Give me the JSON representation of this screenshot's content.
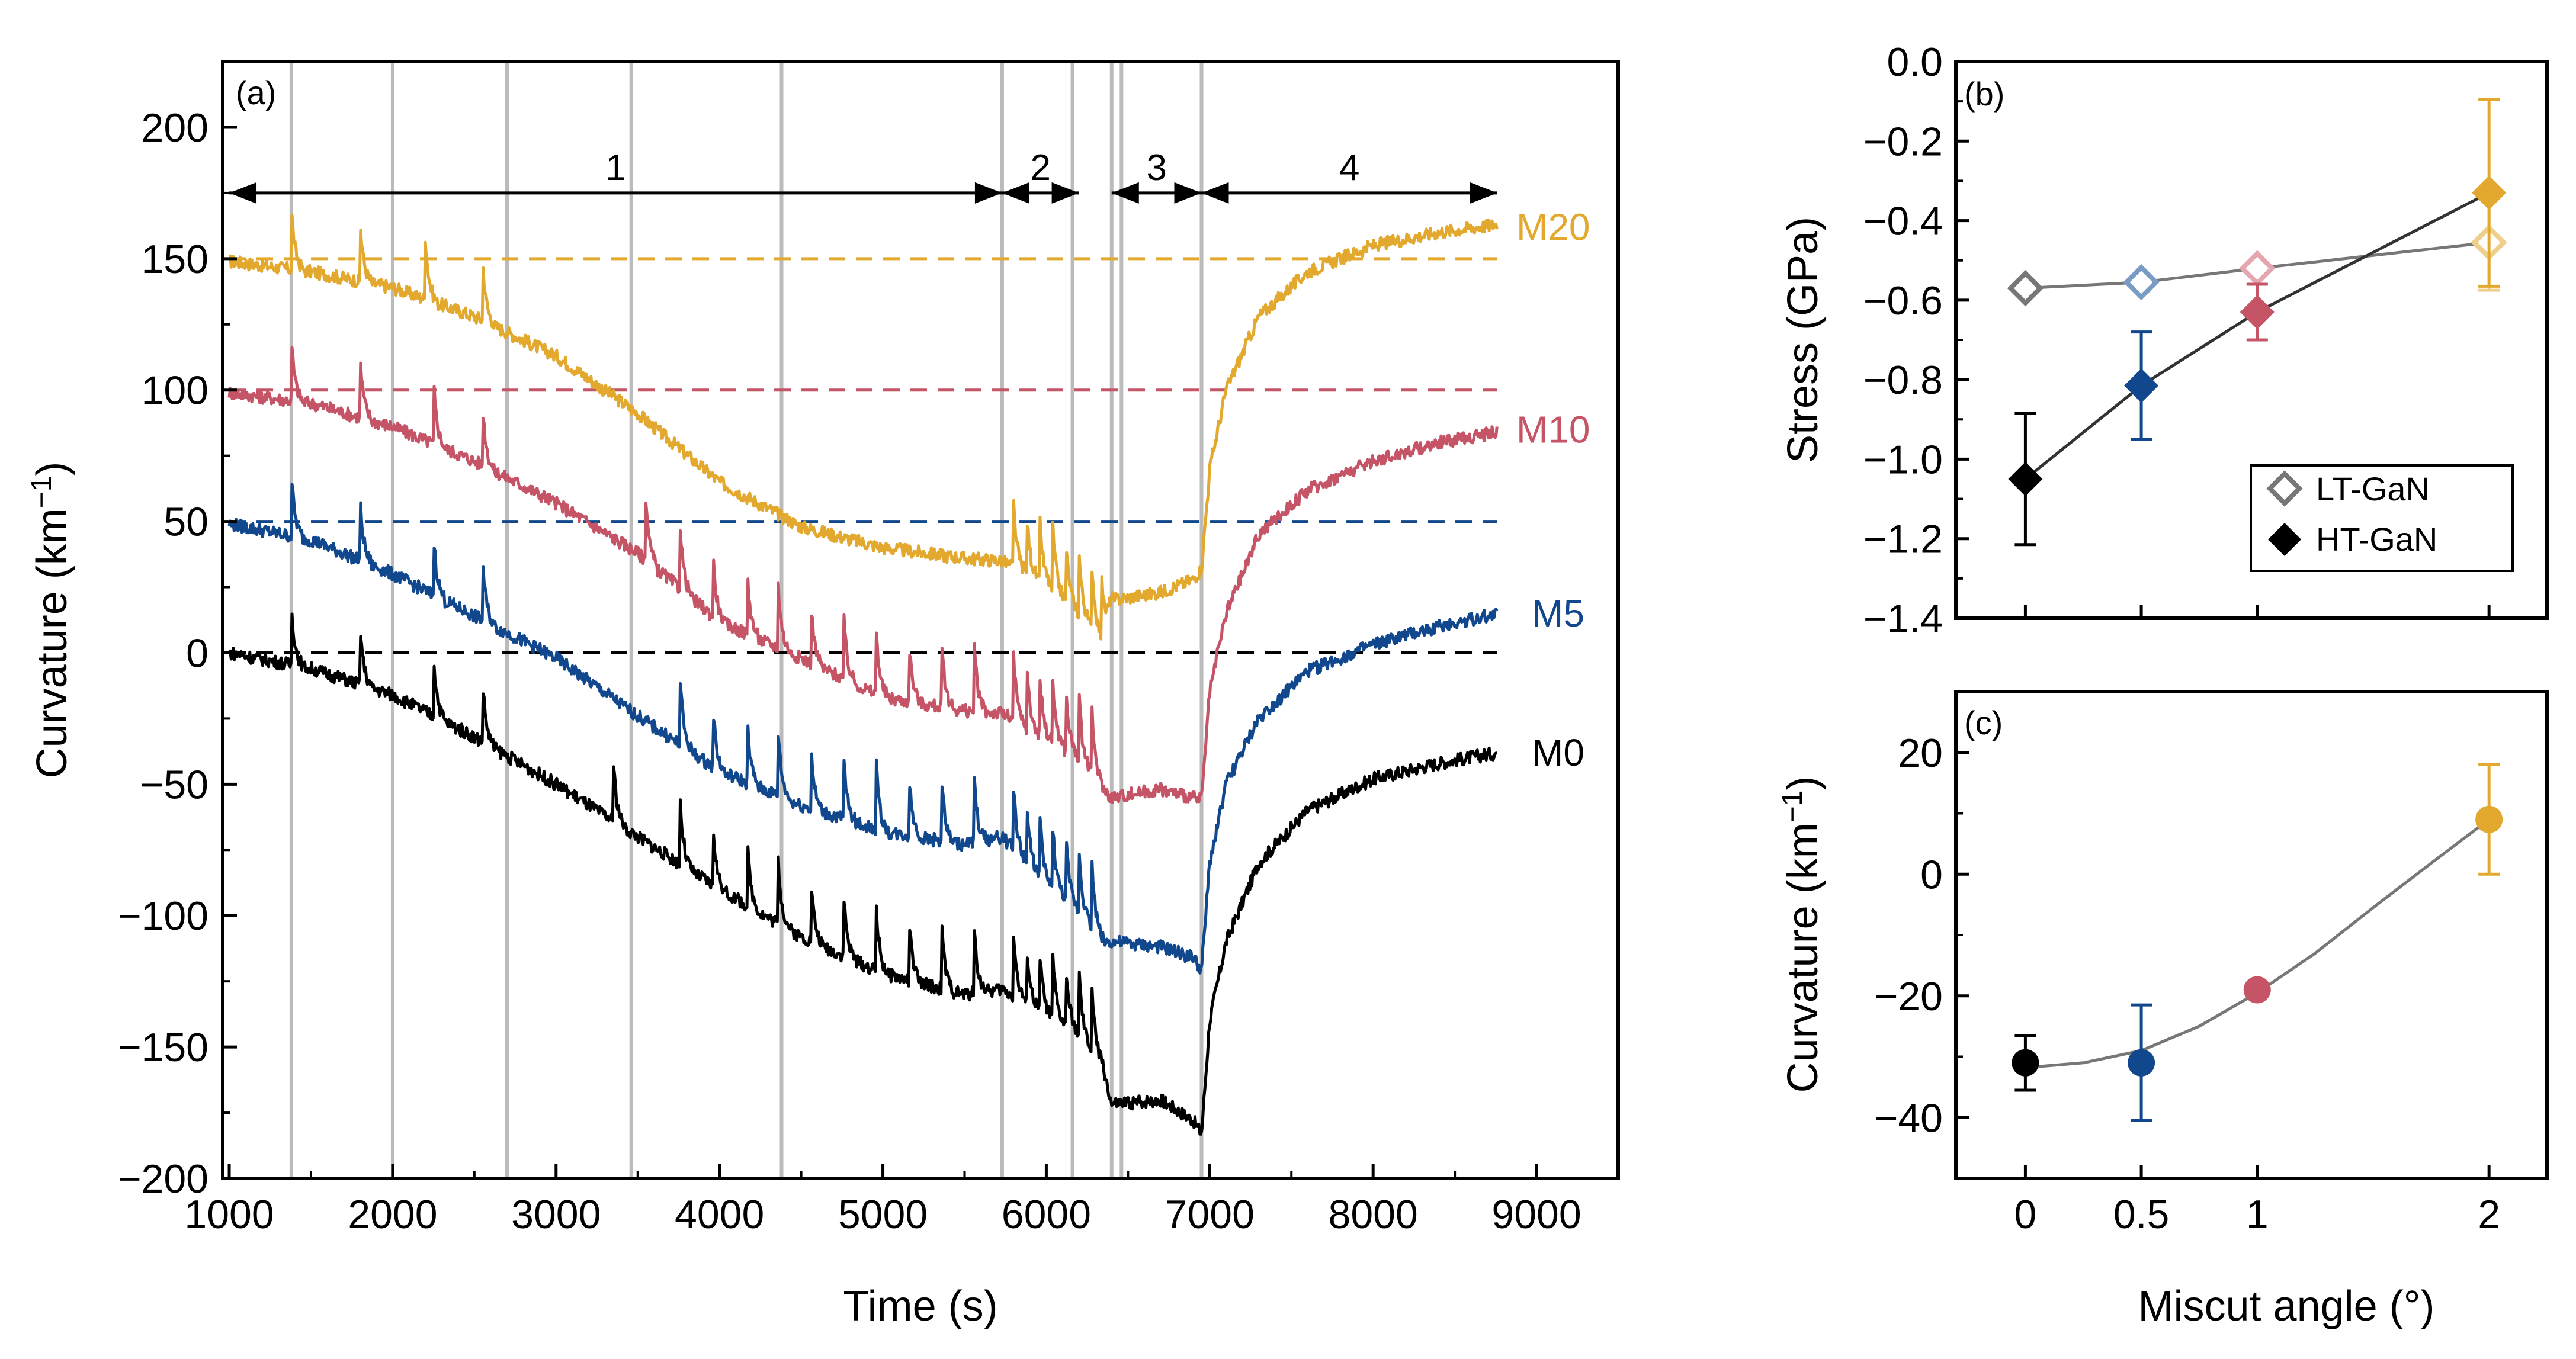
{
  "chart_data": [
    {
      "panel": "(a)",
      "type": "line",
      "xlabel": "Time (s)",
      "ylabel": "Curvature (km",
      "ylabel_sup": "−1",
      "ylabel_close": ")",
      "xlim": [
        960,
        9500
      ],
      "ylim": [
        -200,
        225
      ],
      "xticks": [
        1000,
        2000,
        3000,
        4000,
        5000,
        6000,
        7000,
        8000,
        9000
      ],
      "yticks": [
        -200,
        -150,
        -100,
        -50,
        0,
        50,
        100,
        150,
        200
      ],
      "xtick_labels": [
        "1000",
        "2000",
        "3000",
        "4000",
        "5000",
        "6000",
        "7000",
        "8000",
        "9000"
      ],
      "ytick_labels": [
        "−200",
        "−150",
        "−100",
        "−50",
        "0",
        "50",
        "100",
        "150",
        "200"
      ],
      "vlines": [
        1380,
        2000,
        2700,
        3460,
        4380,
        5730,
        6160,
        6400,
        6460,
        6950
      ],
      "phases": [
        {
          "label": "1",
          "x_start": 1000,
          "x_end": 5730
        },
        {
          "label": "2",
          "x_start": 5730,
          "x_end": 6200
        },
        {
          "label": "3",
          "x_start": 6400,
          "x_end": 6950
        },
        {
          "label": "4",
          "x_start": 6950,
          "x_end": 8760
        }
      ],
      "phase_arrow_y": 175,
      "series": [
        {
          "name": "M20",
          "color": "#e2a92e",
          "offset": 150,
          "x": [
            1000,
            1500,
            2000,
            2500,
            3000,
            3500,
            4000,
            4500,
            5000,
            5500,
            5730,
            6000,
            6200,
            6350,
            6400,
            6700,
            6900,
            6950,
            7000,
            7100,
            7300,
            7600,
            8000,
            8400,
            8760
          ],
          "y": [
            149,
            145,
            139,
            128,
            113,
            91,
            65,
            48,
            40,
            36,
            35,
            26,
            15,
            4,
            20,
            23,
            28,
            32,
            70,
            100,
            128,
            145,
            155,
            160,
            163
          ],
          "spikes": [
            1380,
            1800,
            2200,
            2550,
            5800,
            5880,
            5960,
            6040,
            6120,
            6200,
            6280,
            6340
          ],
          "label_y": 162
        },
        {
          "name": "M10",
          "color": "#c45466",
          "offset": 100,
          "x": [
            1000,
            1500,
            2000,
            2500,
            3000,
            3500,
            4000,
            4500,
            5000,
            5500,
            5730,
            6000,
            6200,
            6350,
            6400,
            6700,
            6900,
            6950,
            7000,
            7100,
            7300,
            7600,
            8000,
            8400,
            8760
          ],
          "y": [
            99,
            95,
            86,
            73,
            57,
            38,
            12,
            -2,
            -17,
            -22,
            -23,
            -33,
            -40,
            -52,
            -55,
            -52,
            -55,
            -56,
            -15,
            15,
            45,
            62,
            73,
            80,
            84
          ],
          "spikes": [
            1380,
            1800,
            2250,
            2550,
            3550,
            3760,
            3960,
            4170,
            4360,
            4560,
            4760,
            4960,
            5160,
            5360,
            5560,
            5800,
            5880,
            5960,
            6040,
            6120,
            6200,
            6280
          ],
          "label_y": 85
        },
        {
          "name": "M5",
          "color": "#11478c",
          "offset": 50,
          "x": [
            1000,
            1500,
            2000,
            2500,
            3000,
            3500,
            4000,
            4500,
            5000,
            5500,
            5730,
            6000,
            6200,
            6350,
            6400,
            6700,
            6900,
            6950,
            7000,
            7100,
            7300,
            7600,
            8000,
            8400,
            8760
          ],
          "y": [
            49,
            43,
            30,
            14,
            -2,
            -24,
            -45,
            -58,
            -68,
            -73,
            -70,
            -88,
            -98,
            -110,
            -110,
            -112,
            -116,
            -121,
            -80,
            -50,
            -25,
            -7,
            3,
            10,
            15
          ],
          "spikes": [
            1380,
            1800,
            2250,
            2550,
            3760,
            3960,
            4170,
            4360,
            4560,
            4760,
            4960,
            5160,
            5360,
            5560,
            5800,
            5880,
            5960,
            6040,
            6120,
            6200,
            6280
          ],
          "label_y": 15
        },
        {
          "name": "M0",
          "color": "#000000",
          "offset": 0,
          "x": [
            1000,
            1500,
            2000,
            2500,
            3000,
            3500,
            4000,
            4500,
            5000,
            5500,
            5730,
            6000,
            6200,
            6350,
            6400,
            6700,
            6900,
            6950,
            7000,
            7100,
            7300,
            7600,
            8000,
            8400,
            8760
          ],
          "y": [
            0,
            -6,
            -16,
            -32,
            -50,
            -70,
            -90,
            -108,
            -122,
            -130,
            -128,
            -138,
            -145,
            -158,
            -172,
            -170,
            -178,
            -183,
            -140,
            -110,
            -80,
            -60,
            -48,
            -42,
            -38
          ],
          "spikes": [
            1380,
            1800,
            2250,
            2550,
            3350,
            3760,
            3960,
            4170,
            4360,
            4560,
            4760,
            4960,
            5160,
            5360,
            5560,
            5800,
            5880,
            5960,
            6040,
            6120,
            6200,
            6280
          ],
          "label_y": -38
        }
      ],
      "annotations": [
        "M20",
        "M10",
        "M5",
        "M0"
      ]
    },
    {
      "panel": "(b)",
      "type": "scatter",
      "xlabel": "",
      "ylabel": "Stress (GPa)",
      "xlim": [
        -0.3,
        2.25
      ],
      "ylim": [
        -1.4,
        0.0
      ],
      "yticks": [
        -1.4,
        -1.2,
        -1.0,
        -0.8,
        -0.6,
        -0.4,
        -0.2,
        0.0
      ],
      "ytick_labels": [
        "−1.4",
        "−1.2",
        "−1.0",
        "−0.8",
        "−0.6",
        "−0.4",
        "−0.2",
        "0.0"
      ],
      "colors": [
        "#000000",
        "#11478c",
        "#c45466",
        "#e2a92e"
      ],
      "series": [
        {
          "name": "LT-GaN",
          "marker": "open-diamond",
          "line_color": "#777777",
          "x": [
            0,
            0.5,
            1,
            2
          ],
          "y": [
            -0.57,
            -0.555,
            -0.52,
            -0.455
          ],
          "err": [
            0,
            0,
            0,
            0.12
          ]
        },
        {
          "name": "HT-GaN",
          "marker": "filled-diamond",
          "line_color": "#333333",
          "x": [
            0,
            0.5,
            1,
            2
          ],
          "y": [
            -1.05,
            -0.815,
            -0.63,
            -0.33
          ],
          "err": [
            0.165,
            0.135,
            0.07,
            0.235
          ]
        }
      ],
      "legend": [
        "LT-GaN",
        "HT-GaN"
      ],
      "legend_position": "bottom-right"
    },
    {
      "panel": "(c)",
      "type": "scatter",
      "xlabel": "Miscut angle (°)",
      "ylabel": "Curvature (km",
      "ylabel_sup": "−1",
      "ylabel_close": ")",
      "xlim": [
        -0.3,
        2.25
      ],
      "ylim": [
        -50,
        30
      ],
      "xticks": [
        0,
        0.5,
        1,
        2
      ],
      "xtick_labels": [
        "0",
        "0.5",
        "1",
        "2"
      ],
      "yticks": [
        -40,
        -20,
        0,
        20
      ],
      "ytick_labels": [
        "−40",
        "−20",
        "0",
        "20"
      ],
      "colors": [
        "#000000",
        "#11478c",
        "#c45466",
        "#e2a92e"
      ],
      "series": [
        {
          "name": "Curvature",
          "x": [
            0,
            0.5,
            1,
            2
          ],
          "y": [
            -31,
            -31,
            -19,
            9
          ],
          "err": [
            4.5,
            9.5,
            0,
            9
          ]
        }
      ],
      "fit_line": {
        "x": [
          0,
          0.25,
          0.5,
          0.75,
          1,
          1.25,
          1.5,
          1.75,
          2
        ],
        "y": [
          -31.8,
          -31,
          -29,
          -25,
          -19.5,
          -13,
          -5.5,
          1.8,
          9
        ]
      }
    }
  ]
}
